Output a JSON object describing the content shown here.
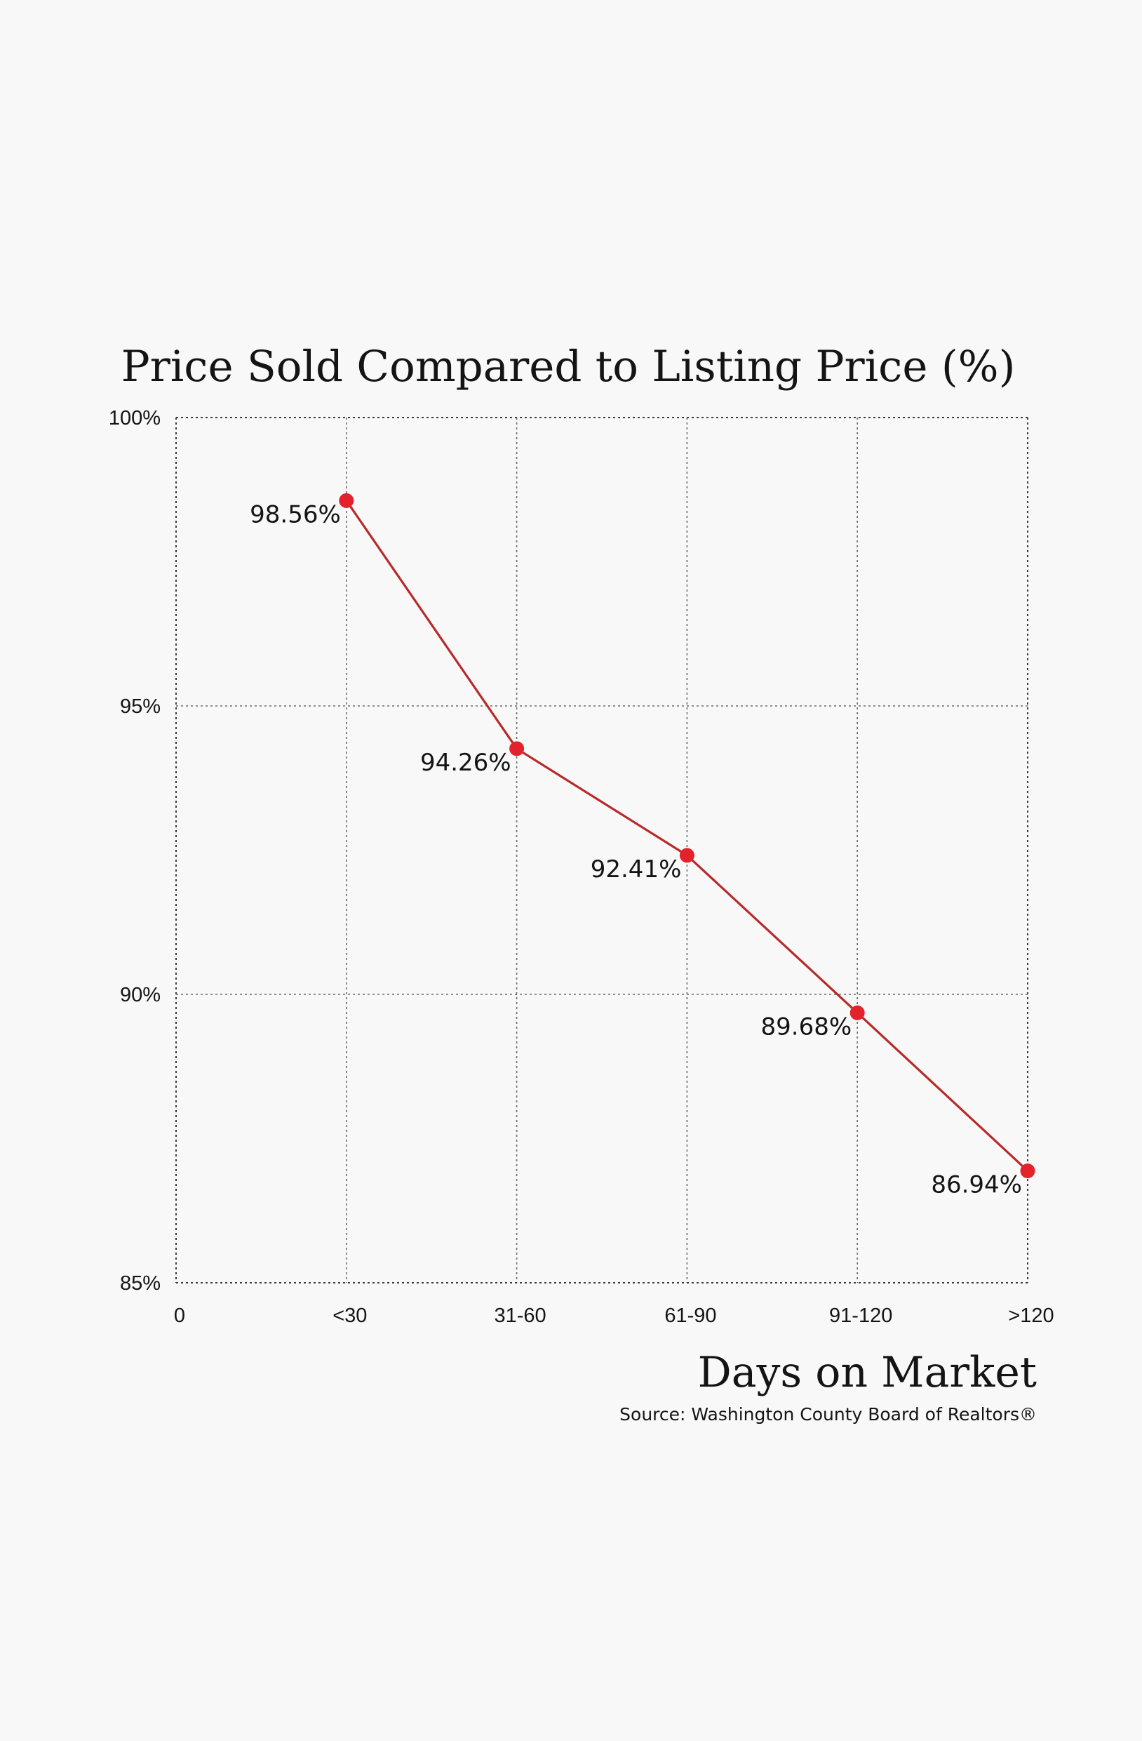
{
  "chart_data": {
    "type": "line",
    "title": "Price Sold Compared to Listing Price (%)",
    "xlabel": "Days on Market",
    "ylabel": "",
    "source": "Source: Washington County Board of Realtors®",
    "x_tick_labels": [
      "0",
      "<30",
      "31-60",
      "61-90",
      "91-120",
      ">120"
    ],
    "y_ticks": [
      85,
      90,
      95,
      100
    ],
    "y_tick_labels": [
      "85%",
      "90%",
      "95%",
      "100%"
    ],
    "ylim": [
      85,
      100
    ],
    "grid": true,
    "series": [
      {
        "name": "Price Sold Compared to Listing Price",
        "categories": [
          "<30",
          "31-60",
          "61-90",
          "91-120",
          ">120"
        ],
        "values": [
          98.56,
          94.26,
          92.41,
          89.68,
          86.94
        ],
        "labels": [
          "98.56%",
          "94.26%",
          "92.41%",
          "89.68%",
          "86.94%"
        ],
        "line_color": "#b82a2a",
        "marker_color": "#e2232b"
      }
    ]
  }
}
